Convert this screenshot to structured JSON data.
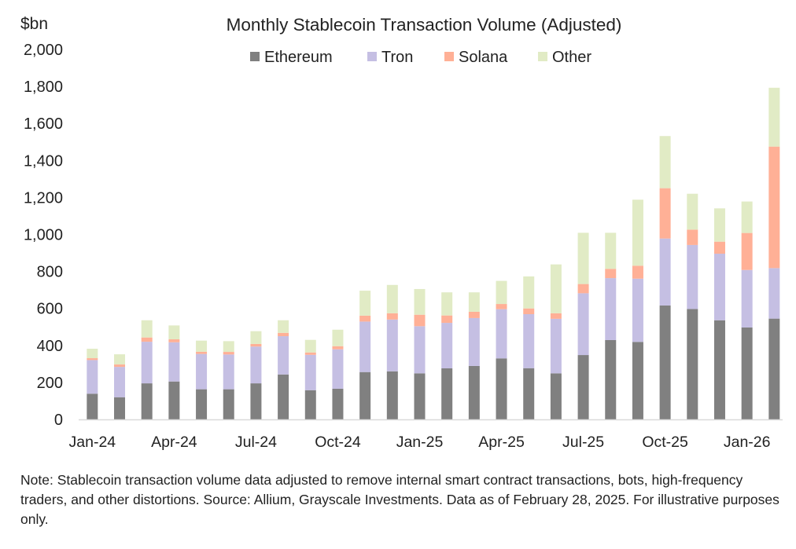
{
  "chart_data": {
    "type": "bar",
    "stacked": true,
    "title": "Monthly Stablecoin Transaction Volume (Adjusted)",
    "ylabel": "$bn",
    "xlabel": "",
    "ylim": [
      0,
      2000
    ],
    "yticks": [
      0,
      200,
      400,
      600,
      800,
      1000,
      1200,
      1400,
      1600,
      1800,
      2000
    ],
    "ytick_labels": [
      "0",
      "200",
      "400",
      "600",
      "800",
      "1,000",
      "1,200",
      "1,400",
      "1,600",
      "1,800",
      "2,000"
    ],
    "grid": false,
    "legend_position": "top",
    "categories": [
      "Jan-24",
      "Feb-24",
      "Mar-24",
      "Apr-24",
      "May-24",
      "Jun-24",
      "Jul-24",
      "Aug-24",
      "Sep-24",
      "Oct-24",
      "Nov-24",
      "Dec-24",
      "Jan-25",
      "Feb-25",
      "Mar-25",
      "Apr-25",
      "May-25",
      "Jun-25",
      "Jul-25",
      "Aug-25",
      "Sep-25",
      "Oct-25",
      "Nov-25",
      "Dec-25",
      "Jan-26",
      "Feb-26"
    ],
    "xtick_labels": [
      "Jan-24",
      "Apr-24",
      "Jul-24",
      "Oct-24",
      "Jan-25",
      "Apr-25",
      "Jul-25",
      "Oct-25",
      "Jan-26"
    ],
    "series": [
      {
        "name": "Ethereum",
        "color": "#808080",
        "values": [
          139,
          120,
          195,
          205,
          163,
          163,
          195,
          243,
          158,
          166,
          256,
          260,
          249,
          276,
          289,
          330,
          277,
          249,
          348,
          429,
          419,
          616,
          597,
          536,
          497,
          545
        ]
      },
      {
        "name": "Tron",
        "color": "#c5bfe3",
        "values": [
          182,
          164,
          225,
          212,
          191,
          188,
          199,
          207,
          191,
          213,
          273,
          280,
          255,
          246,
          259,
          266,
          292,
          295,
          334,
          335,
          342,
          362,
          346,
          360,
          311,
          273
        ]
      },
      {
        "name": "Solana",
        "color": "#ffb096",
        "values": [
          10,
          13,
          23,
          16,
          12,
          14,
          14,
          18,
          13,
          17,
          32,
          34,
          62,
          40,
          34,
          28,
          31,
          30,
          50,
          50,
          70,
          272,
          83,
          65,
          200,
          657
        ]
      },
      {
        "name": "Other",
        "color": "#e1ebc5",
        "values": [
          51,
          55,
          93,
          75,
          60,
          58,
          69,
          68,
          68,
          89,
          135,
          153,
          139,
          125,
          105,
          125,
          173,
          264,
          277,
          195,
          357,
          282,
          194,
          180,
          170,
          318
        ]
      }
    ]
  },
  "note": "Note: Stablecoin transaction volume data adjusted to remove internal smart contract transactions, bots, high-frequency traders, and other distortions. Source: Allium, Grayscale Investments. Data as of February 28, 2025. For illustrative purposes only."
}
